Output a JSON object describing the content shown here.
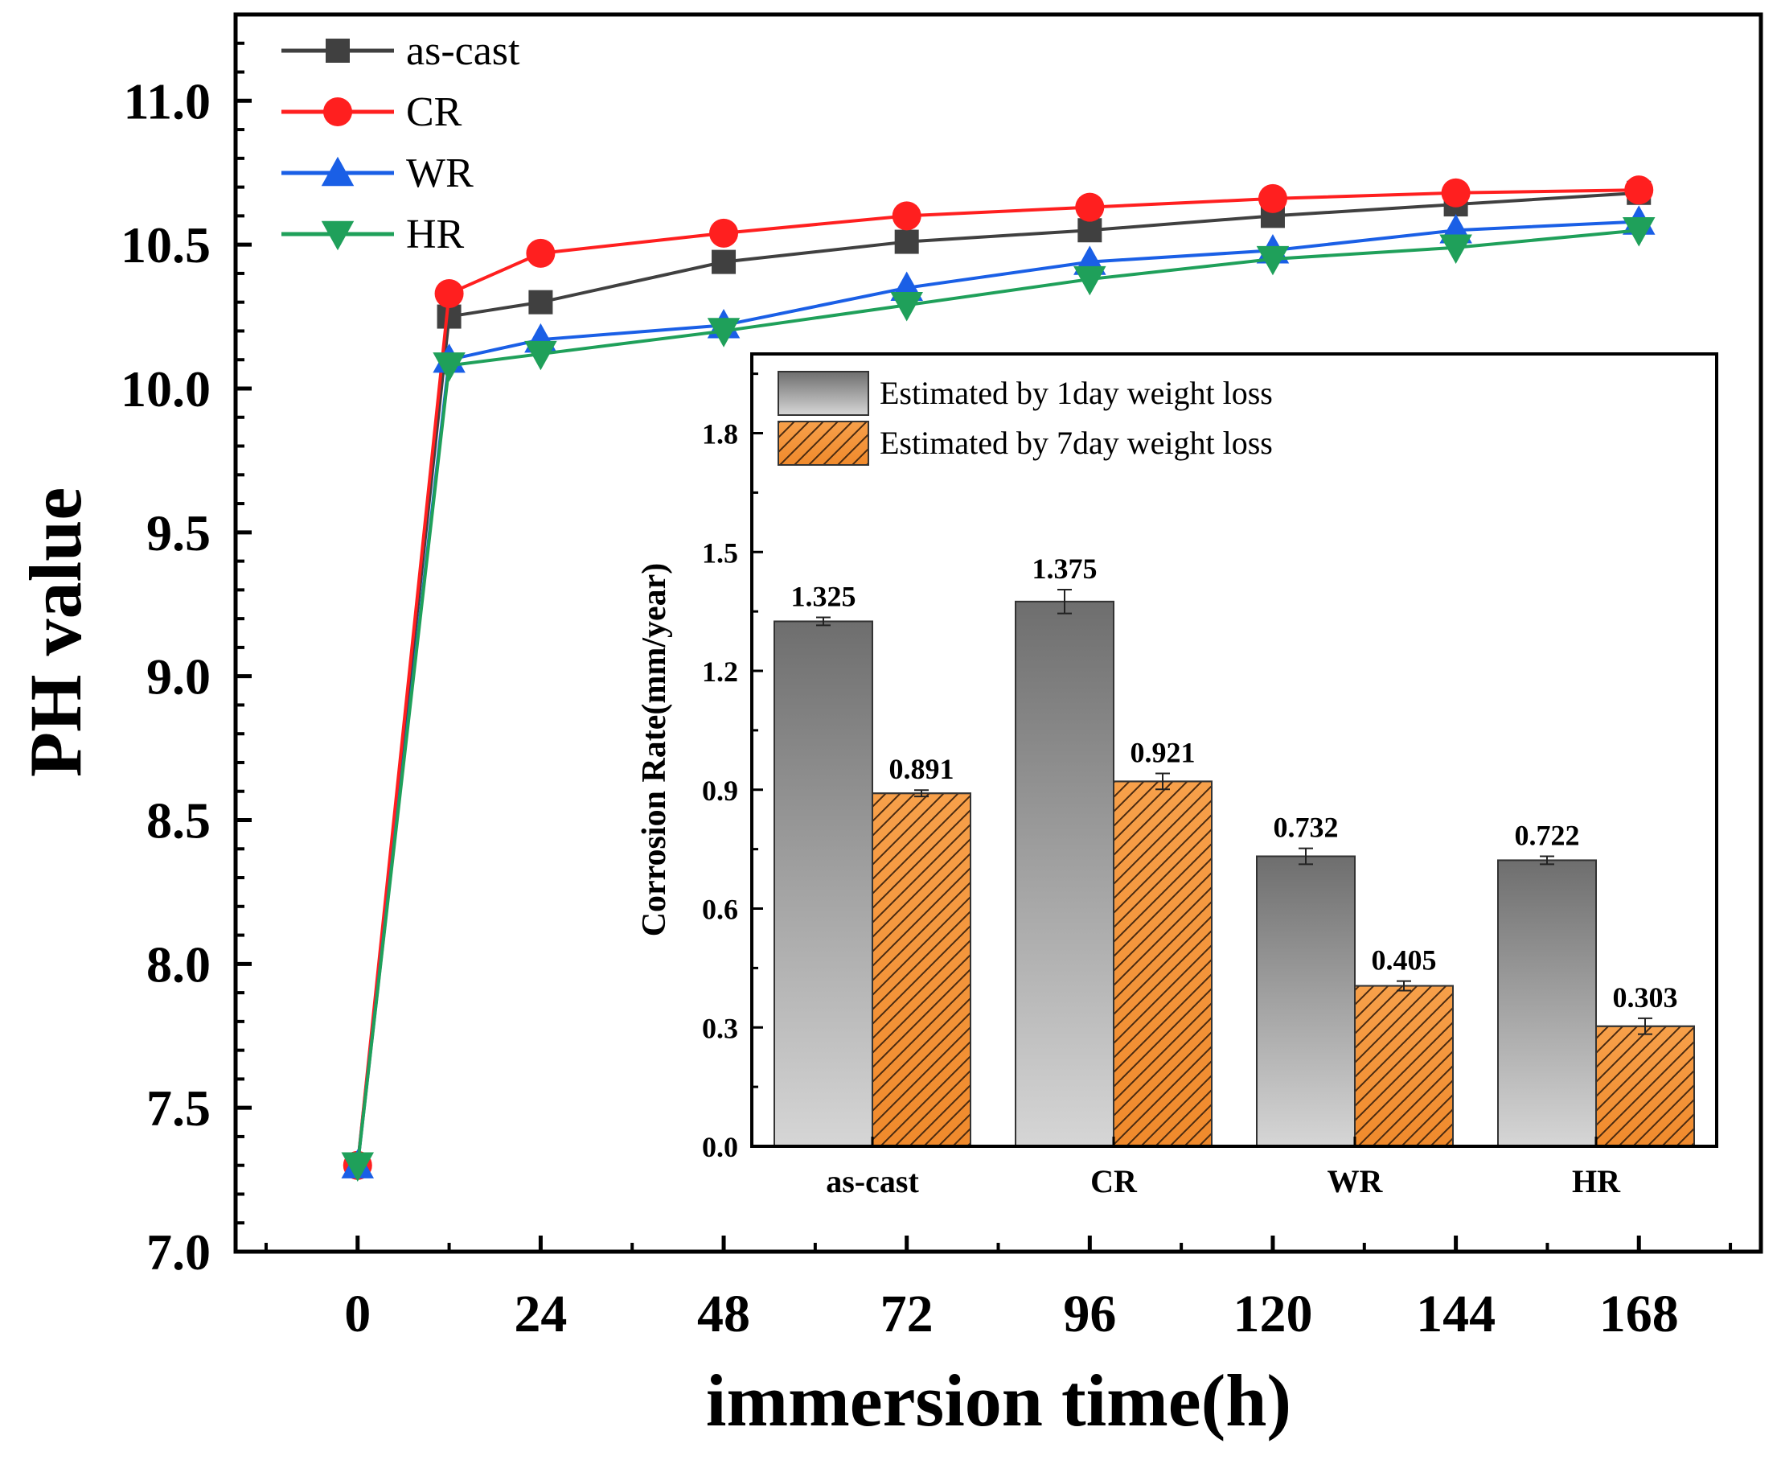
{
  "chart_data": [
    {
      "type": "line",
      "xlabel": "immersion time(h)",
      "ylabel": "PH value",
      "xlim": [
        -16,
        184
      ],
      "ylim": [
        7.0,
        11.3
      ],
      "xticks": [
        0,
        24,
        48,
        72,
        96,
        120,
        144,
        168
      ],
      "yticks": [
        7.0,
        7.5,
        8.0,
        8.5,
        9.0,
        9.5,
        10.0,
        10.5,
        11.0
      ],
      "ytick_labels": [
        "7.0",
        "7.5",
        "8.0",
        "8.5",
        "9.0",
        "9.5",
        "10.0",
        "10.5",
        "11.0"
      ],
      "x": [
        0,
        12,
        24,
        48,
        72,
        96,
        120,
        144,
        168
      ],
      "legend_position": "top-left",
      "series": [
        {
          "name": "as-cast",
          "color": "#404040",
          "marker": "square",
          "values": [
            7.3,
            10.25,
            10.3,
            10.44,
            10.51,
            10.55,
            10.6,
            10.64,
            10.68
          ]
        },
        {
          "name": "CR",
          "color": "#ff1f1f",
          "marker": "circle",
          "values": [
            7.3,
            10.33,
            10.47,
            10.54,
            10.6,
            10.63,
            10.66,
            10.68,
            10.69
          ]
        },
        {
          "name": "WR",
          "color": "#1a5fe6",
          "marker": "triangle-up",
          "values": [
            7.3,
            10.1,
            10.17,
            10.22,
            10.35,
            10.44,
            10.48,
            10.55,
            10.58
          ]
        },
        {
          "name": "HR",
          "color": "#1fa05a",
          "marker": "triangle-down",
          "values": [
            7.3,
            10.08,
            10.12,
            10.2,
            10.29,
            10.38,
            10.45,
            10.49,
            10.55
          ]
        }
      ]
    },
    {
      "type": "bar",
      "title": "inset",
      "ylabel": "Corrosion Rate(mm/year)",
      "xlabel": "",
      "ylim": [
        0.0,
        2.0
      ],
      "yticks": [
        0.0,
        0.3,
        0.6,
        0.9,
        1.2,
        1.5,
        1.8
      ],
      "ytick_labels": [
        "0.0",
        "0.3",
        "0.6",
        "0.9",
        "1.2",
        "1.5",
        "1.8"
      ],
      "categories": [
        "as-cast",
        "CR",
        "WR",
        "HR"
      ],
      "legend_position": "top-left",
      "series": [
        {
          "name": "Estimated by 1day weight loss",
          "style": "gray-gradient",
          "values": [
            1.325,
            1.375,
            0.732,
            0.722
          ],
          "labels": [
            "1.325",
            "1.375",
            "0.732",
            "0.722"
          ],
          "errors": [
            0.01,
            0.03,
            0.02,
            0.01
          ]
        },
        {
          "name": "Estimated by 7day weight loss",
          "style": "orange-hatched",
          "values": [
            0.891,
            0.921,
            0.405,
            0.303
          ],
          "labels": [
            "0.891",
            "0.921",
            "0.405",
            "0.303"
          ],
          "errors": [
            0.008,
            0.02,
            0.012,
            0.02
          ]
        }
      ]
    }
  ]
}
